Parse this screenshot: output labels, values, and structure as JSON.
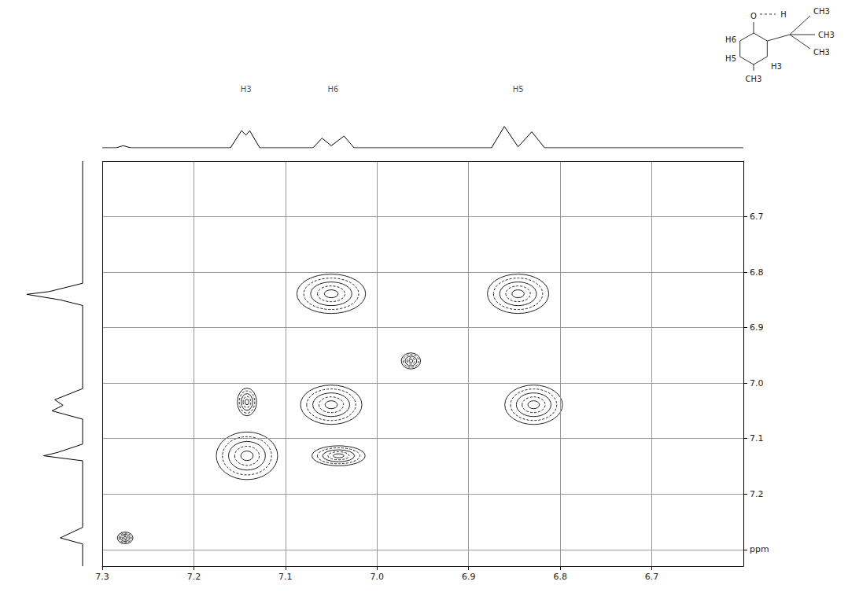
{
  "chart_data": {
    "type": "contour",
    "xlim": [
      7.3,
      6.6
    ],
    "xticks": [
      6.7,
      6.8,
      6.9,
      {
        "value": 7,
        "label": "7.0"
      },
      7.1,
      7.2,
      7.3
    ],
    "ylim": [
      7.33,
      6.6
    ],
    "yticks": [
      6.7,
      6.8,
      6.9,
      {
        "value": 7,
        "label": "7.0"
      },
      7.1,
      7.2,
      {
        "value": 7.3,
        "label": "ppm"
      }
    ],
    "grid": true,
    "peaks": [
      {
        "x": 7.142,
        "y": 7.131,
        "width": 0.067,
        "height": 0.086
      },
      {
        "x": 7.05,
        "y": 6.839,
        "width": 0.075,
        "height": 0.071
      },
      {
        "x": 6.846,
        "y": 6.839,
        "width": 0.067,
        "height": 0.071
      },
      {
        "x": 7.05,
        "y": 7.039,
        "width": 0.067,
        "height": 0.071
      },
      {
        "x": 6.829,
        "y": 7.039,
        "width": 0.063,
        "height": 0.071
      },
      {
        "x": 7.142,
        "y": 7.034,
        "width": 0.021,
        "height": 0.05
      },
      {
        "x": 7.042,
        "y": 7.131,
        "width": 0.058,
        "height": 0.036
      },
      {
        "x": 6.963,
        "y": 6.96,
        "width": 0.021,
        "height": 0.029
      },
      {
        "x": 7.275,
        "y": 7.279,
        "width": 0.017,
        "height": 0.021
      }
    ],
    "top_projection": {
      "x": [
        7.3,
        7.285,
        7.277,
        7.269,
        7.16,
        7.148,
        7.143,
        7.139,
        7.128,
        7.07,
        7.06,
        7.05,
        7.036,
        7.025,
        6.875,
        6.861,
        6.846,
        6.831,
        6.817,
        6.6
      ],
      "values": [
        0,
        0,
        10,
        0,
        0,
        80,
        60,
        80,
        0,
        0,
        45,
        10,
        55,
        0,
        0,
        100,
        5,
        75,
        0,
        0
      ],
      "ylim": [
        0,
        250
      ]
    },
    "annotations": [
      {
        "text": "H3",
        "x": 7.143
      },
      {
        "text": "H6",
        "x": 7.048
      },
      {
        "text": "H5",
        "x": 6.846
      }
    ],
    "left_projection": {
      "y": [
        6.6,
        6.82,
        6.835,
        6.84,
        6.85,
        6.86,
        7.01,
        7.03,
        7.04,
        7.05,
        7.065,
        7.11,
        7.125,
        7.131,
        7.14,
        7.26,
        7.279,
        7.29,
        7.33
      ],
      "values": [
        0,
        0,
        60,
        100,
        40,
        0,
        0,
        50,
        35,
        55,
        0,
        0,
        45,
        70,
        0,
        0,
        40,
        0,
        0
      ],
      "xlim": [
        120,
        0
      ]
    }
  },
  "structure": {
    "labels": [
      "O",
      "H",
      "CH3",
      "CH3",
      "CH3",
      "H6",
      "H5",
      "H3",
      "CH3"
    ]
  }
}
